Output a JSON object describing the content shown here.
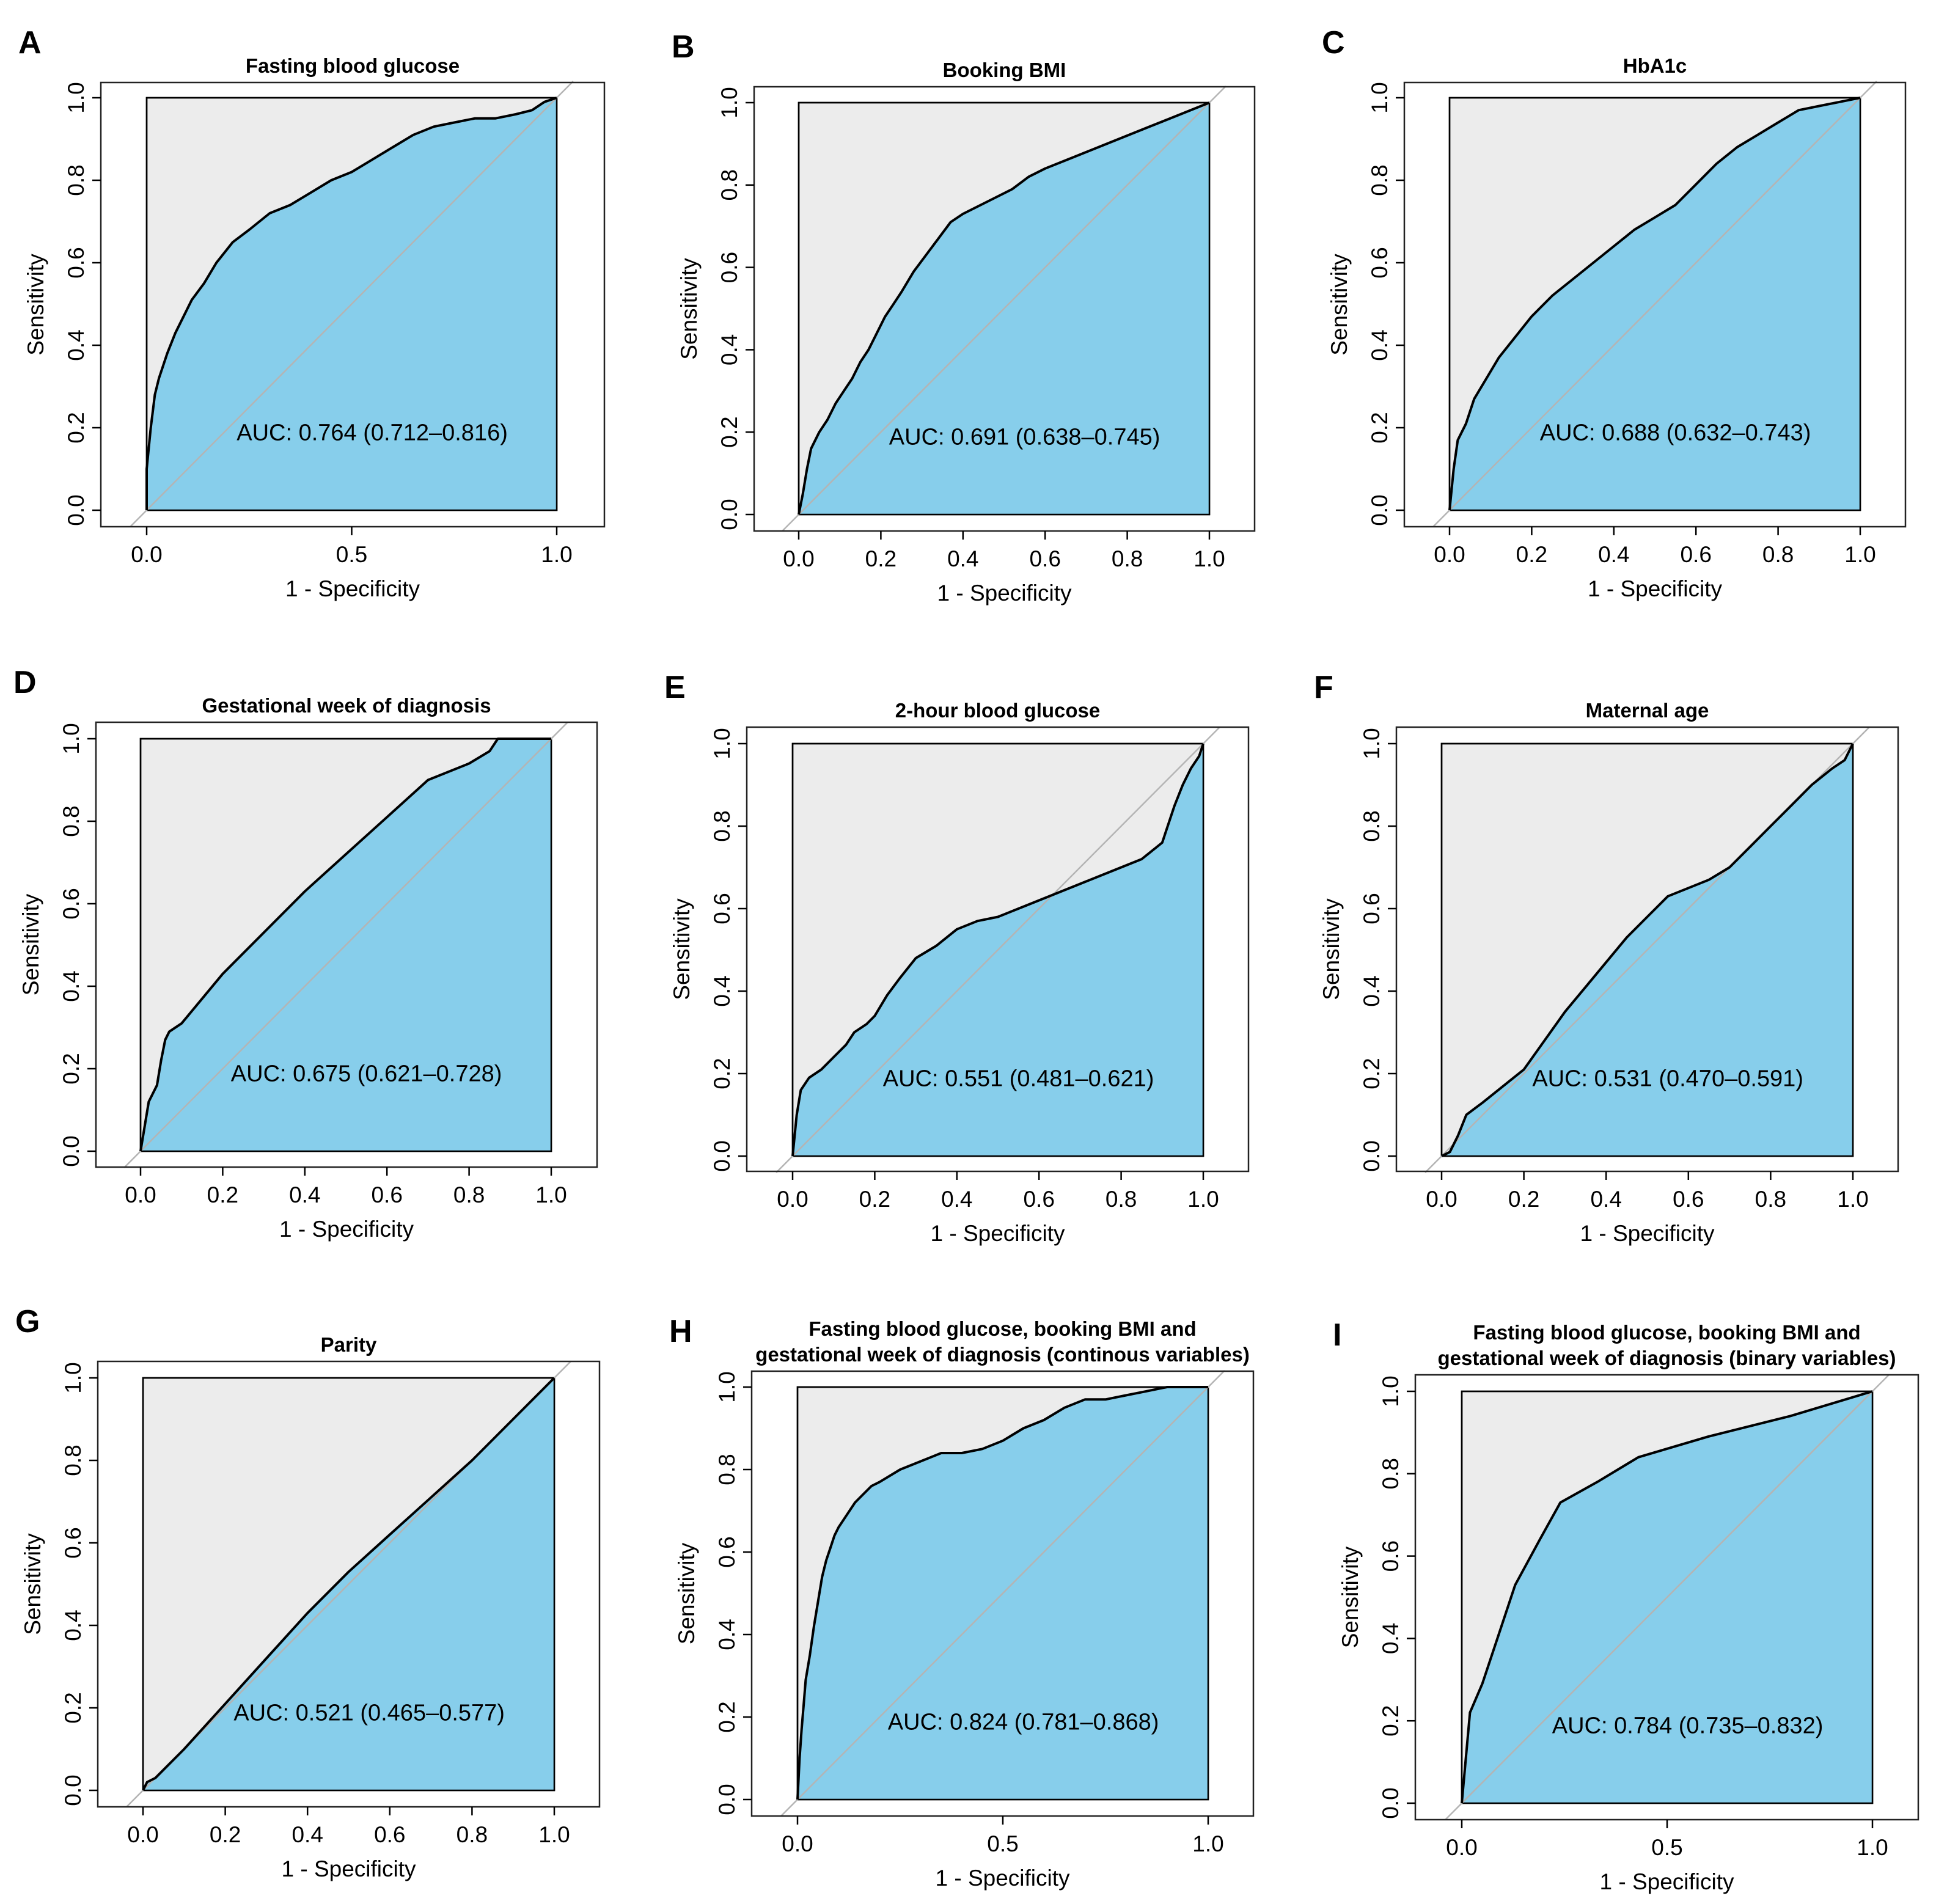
{
  "colors": {
    "fill_under": "#87ceeb",
    "fill_over": "#ececec",
    "diagonal": "#b4b4b4",
    "curve": "#000000",
    "frame": "#444444"
  },
  "chart_data": [
    {
      "id": "A",
      "letter": "A",
      "type": "line",
      "title_lines": [
        "Fasting blood glucose"
      ],
      "xlabel": "1 - Specificity",
      "ylabel": "Sensitivity",
      "xlim": [
        0,
        1
      ],
      "ylim": [
        0,
        1
      ],
      "xticks": [
        "0.0",
        "0.5",
        "1.0"
      ],
      "yticks": [
        "0.0",
        "0.2",
        "0.4",
        "0.6",
        "0.8",
        "1.0"
      ],
      "auc_text": "AUC: 0.764 (0.712–0.816)",
      "x": [
        0,
        0,
        0.01,
        0.02,
        0.03,
        0.05,
        0.07,
        0.09,
        0.11,
        0.14,
        0.17,
        0.21,
        0.25,
        0.3,
        0.35,
        0.4,
        0.45,
        0.5,
        0.55,
        0.6,
        0.65,
        0.7,
        0.75,
        0.8,
        0.85,
        0.9,
        0.94,
        0.97,
        1
      ],
      "y": [
        0,
        0.1,
        0.2,
        0.28,
        0.32,
        0.38,
        0.43,
        0.47,
        0.51,
        0.55,
        0.6,
        0.65,
        0.68,
        0.72,
        0.74,
        0.77,
        0.8,
        0.82,
        0.85,
        0.88,
        0.91,
        0.93,
        0.94,
        0.95,
        0.95,
        0.96,
        0.97,
        0.99,
        1
      ]
    },
    {
      "id": "B",
      "letter": "B",
      "type": "line",
      "title_lines": [
        "Booking BMI"
      ],
      "xlabel": "1 - Specificity",
      "ylabel": "Sensitivity",
      "xlim": [
        0,
        1
      ],
      "ylim": [
        0,
        1
      ],
      "xticks": [
        "0.0",
        "0.2",
        "0.4",
        "0.6",
        "0.8",
        "1.0"
      ],
      "yticks": [
        "0.0",
        "0.2",
        "0.4",
        "0.6",
        "0.8",
        "1.0"
      ],
      "auc_text": "AUC: 0.691 (0.638–0.745)",
      "x": [
        0,
        0.01,
        0.02,
        0.03,
        0.05,
        0.07,
        0.09,
        0.11,
        0.13,
        0.15,
        0.17,
        0.19,
        0.21,
        0.23,
        0.25,
        0.28,
        0.31,
        0.34,
        0.37,
        0.4,
        0.44,
        0.48,
        0.52,
        0.56,
        0.6,
        0.65,
        0.7,
        0.75,
        0.8,
        0.85,
        0.9,
        0.95,
        1
      ],
      "y": [
        0,
        0.05,
        0.11,
        0.16,
        0.2,
        0.23,
        0.27,
        0.3,
        0.33,
        0.37,
        0.4,
        0.44,
        0.48,
        0.51,
        0.54,
        0.59,
        0.63,
        0.67,
        0.71,
        0.73,
        0.75,
        0.77,
        0.79,
        0.82,
        0.84,
        0.86,
        0.88,
        0.9,
        0.92,
        0.94,
        0.96,
        0.98,
        1
      ]
    },
    {
      "id": "C",
      "letter": "C",
      "type": "line",
      "title_lines": [
        "HbA1c"
      ],
      "xlabel": "1 - Specificity",
      "ylabel": "Sensitivity",
      "xlim": [
        0,
        1
      ],
      "ylim": [
        0,
        1
      ],
      "xticks": [
        "0.0",
        "0.2",
        "0.4",
        "0.6",
        "0.8",
        "1.0"
      ],
      "yticks": [
        "0.0",
        "0.2",
        "0.4",
        "0.6",
        "0.8",
        "1.0"
      ],
      "auc_text": "AUC: 0.688 (0.632–0.743)",
      "x": [
        0,
        0.01,
        0.02,
        0.04,
        0.06,
        0.09,
        0.12,
        0.16,
        0.2,
        0.25,
        0.3,
        0.35,
        0.4,
        0.45,
        0.5,
        0.55,
        0.6,
        0.65,
        0.7,
        0.75,
        0.8,
        0.85,
        0.9,
        0.95,
        1
      ],
      "y": [
        0,
        0.1,
        0.17,
        0.21,
        0.27,
        0.32,
        0.37,
        0.42,
        0.47,
        0.52,
        0.56,
        0.6,
        0.64,
        0.68,
        0.71,
        0.74,
        0.79,
        0.84,
        0.88,
        0.91,
        0.94,
        0.97,
        0.98,
        0.99,
        1
      ]
    },
    {
      "id": "D",
      "letter": "D",
      "type": "line",
      "title_lines": [
        "Gestational week of diagnosis"
      ],
      "xlabel": "1 - Specificity",
      "ylabel": "Sensitivity",
      "xlim": [
        0,
        1
      ],
      "ylim": [
        0,
        1
      ],
      "xticks": [
        "0.0",
        "0.2",
        "0.4",
        "0.6",
        "0.8",
        "1.0"
      ],
      "yticks": [
        "0.0",
        "0.2",
        "0.4",
        "0.6",
        "0.8",
        "1.0"
      ],
      "auc_text": "AUC: 0.675 (0.621–0.728)",
      "x": [
        0,
        0.01,
        0.02,
        0.04,
        0.05,
        0.06,
        0.07,
        0.1,
        0.15,
        0.2,
        0.3,
        0.4,
        0.5,
        0.6,
        0.7,
        0.8,
        0.85,
        0.87,
        1
      ],
      "y": [
        0,
        0.06,
        0.12,
        0.16,
        0.22,
        0.27,
        0.29,
        0.31,
        0.37,
        0.43,
        0.53,
        0.63,
        0.72,
        0.81,
        0.9,
        0.94,
        0.97,
        1,
        1
      ]
    },
    {
      "id": "E",
      "letter": "E",
      "type": "line",
      "title_lines": [
        "2-hour blood glucose"
      ],
      "xlabel": "1 - Specificity",
      "ylabel": "Sensitivity",
      "xlim": [
        0,
        1
      ],
      "ylim": [
        0,
        1
      ],
      "xticks": [
        "0.0",
        "0.2",
        "0.4",
        "0.6",
        "0.8",
        "1.0"
      ],
      "yticks": [
        "0.0",
        "0.2",
        "0.4",
        "0.6",
        "0.8",
        "1.0"
      ],
      "auc_text": "AUC: 0.551 (0.481–0.621)",
      "x": [
        0,
        0.01,
        0.02,
        0.04,
        0.07,
        0.1,
        0.13,
        0.15,
        0.18,
        0.2,
        0.23,
        0.26,
        0.3,
        0.35,
        0.4,
        0.45,
        0.5,
        0.55,
        0.6,
        0.65,
        0.7,
        0.75,
        0.8,
        0.85,
        0.9,
        0.91,
        0.93,
        0.95,
        0.97,
        0.99,
        1
      ],
      "y": [
        0,
        0.1,
        0.16,
        0.19,
        0.21,
        0.24,
        0.27,
        0.3,
        0.32,
        0.34,
        0.39,
        0.43,
        0.48,
        0.51,
        0.55,
        0.57,
        0.58,
        0.6,
        0.62,
        0.64,
        0.66,
        0.68,
        0.7,
        0.72,
        0.76,
        0.79,
        0.85,
        0.9,
        0.94,
        0.97,
        1
      ]
    },
    {
      "id": "F",
      "letter": "F",
      "type": "line",
      "title_lines": [
        "Maternal age"
      ],
      "xlabel": "1 - Specificity",
      "ylabel": "Sensitivity",
      "xlim": [
        0,
        1
      ],
      "ylim": [
        0,
        1
      ],
      "xticks": [
        "0.0",
        "0.2",
        "0.4",
        "0.6",
        "0.8",
        "1.0"
      ],
      "yticks": [
        "0.0",
        "0.2",
        "0.4",
        "0.6",
        "0.8",
        "1.0"
      ],
      "auc_text": "AUC: 0.531 (0.470–0.591)",
      "x": [
        0,
        0.02,
        0.04,
        0.06,
        0.1,
        0.2,
        0.25,
        0.3,
        0.35,
        0.4,
        0.45,
        0.5,
        0.55,
        0.6,
        0.65,
        0.7,
        0.75,
        0.8,
        0.85,
        0.9,
        0.95,
        0.98,
        1
      ],
      "y": [
        0,
        0.01,
        0.05,
        0.1,
        0.13,
        0.21,
        0.28,
        0.35,
        0.41,
        0.47,
        0.53,
        0.58,
        0.63,
        0.65,
        0.67,
        0.7,
        0.75,
        0.8,
        0.85,
        0.9,
        0.94,
        0.96,
        1
      ]
    },
    {
      "id": "G",
      "letter": "G",
      "type": "line",
      "title_lines": [
        "Parity"
      ],
      "xlabel": "1 - Specificity",
      "ylabel": "Sensitivity",
      "xlim": [
        0,
        1
      ],
      "ylim": [
        0,
        1
      ],
      "xticks": [
        "0.0",
        "0.2",
        "0.4",
        "0.6",
        "0.8",
        "1.0"
      ],
      "yticks": [
        "0.0",
        "0.2",
        "0.4",
        "0.6",
        "0.8",
        "1.0"
      ],
      "auc_text": "AUC: 0.521 (0.465–0.577)",
      "x": [
        0,
        0.01,
        0.03,
        0.05,
        0.1,
        0.2,
        0.3,
        0.4,
        0.5,
        0.6,
        0.7,
        0.8,
        0.9,
        1
      ],
      "y": [
        0,
        0.02,
        0.03,
        0.05,
        0.1,
        0.21,
        0.32,
        0.43,
        0.53,
        0.62,
        0.71,
        0.8,
        0.9,
        1
      ]
    },
    {
      "id": "H",
      "letter": "H",
      "type": "line",
      "title_lines": [
        "Fasting blood glucose, booking BMI and",
        "gestational week of diagnosis (continous variables)"
      ],
      "xlabel": "1 - Specificity",
      "ylabel": "Sensitivity",
      "xlim": [
        0,
        1
      ],
      "ylim": [
        0,
        1
      ],
      "xticks": [
        "0.0",
        "0.5",
        "1.0"
      ],
      "yticks": [
        "0.0",
        "0.2",
        "0.4",
        "0.6",
        "0.8",
        "1.0"
      ],
      "auc_text": "AUC: 0.824 (0.781–0.868)",
      "x": [
        0,
        0.005,
        0.01,
        0.015,
        0.02,
        0.03,
        0.04,
        0.05,
        0.06,
        0.07,
        0.08,
        0.09,
        0.1,
        0.12,
        0.14,
        0.16,
        0.18,
        0.2,
        0.25,
        0.3,
        0.35,
        0.4,
        0.45,
        0.5,
        0.55,
        0.6,
        0.65,
        0.7,
        0.75,
        0.8,
        0.85,
        0.9,
        0.95,
        1
      ],
      "y": [
        0,
        0.1,
        0.17,
        0.23,
        0.29,
        0.35,
        0.42,
        0.48,
        0.54,
        0.58,
        0.61,
        0.64,
        0.66,
        0.69,
        0.72,
        0.74,
        0.76,
        0.77,
        0.8,
        0.82,
        0.84,
        0.84,
        0.85,
        0.87,
        0.9,
        0.92,
        0.95,
        0.97,
        0.97,
        0.98,
        0.99,
        1,
        1,
        1
      ]
    },
    {
      "id": "I",
      "letter": "I",
      "type": "line",
      "title_lines": [
        "Fasting blood glucose, booking BMI and",
        "gestational week of diagnosis (binary variables)"
      ],
      "xlabel": "1 - Specificity",
      "ylabel": "Sensitivity",
      "xlim": [
        0,
        1
      ],
      "ylim": [
        0,
        1
      ],
      "xticks": [
        "0.0",
        "0.5",
        "1.0"
      ],
      "yticks": [
        "0.0",
        "0.2",
        "0.4",
        "0.6",
        "0.8",
        "1.0"
      ],
      "auc_text": "AUC: 0.784 (0.735–0.832)",
      "x": [
        0,
        0.02,
        0.05,
        0.08,
        0.13,
        0.19,
        0.24,
        0.33,
        0.43,
        0.6,
        0.8,
        1
      ],
      "y": [
        0,
        0.22,
        0.29,
        0.38,
        0.53,
        0.64,
        0.73,
        0.78,
        0.84,
        0.89,
        0.94,
        1
      ]
    }
  ]
}
